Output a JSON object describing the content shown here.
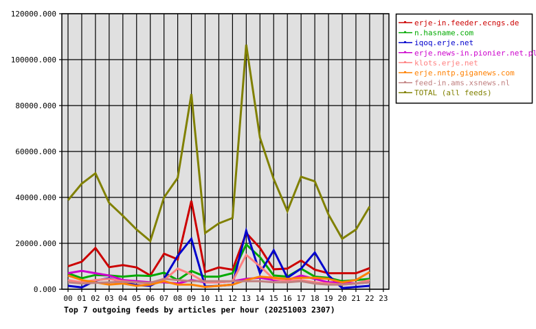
{
  "chart_data": {
    "type": "line",
    "title": "Top 7 outgoing feeds by articles per hour (20251003 2307)",
    "xlabel": "",
    "ylabel": "",
    "ylim": [
      0,
      120000
    ],
    "yticks": [
      "0.000",
      "20000.000",
      "40000.000",
      "60000.000",
      "80000.000",
      "100000.000",
      "120000.000"
    ],
    "ytick_values": [
      0,
      20000,
      40000,
      60000,
      80000,
      100000,
      120000
    ],
    "categories": [
      "00",
      "01",
      "02",
      "03",
      "04",
      "05",
      "06",
      "07",
      "08",
      "09",
      "10",
      "11",
      "12",
      "13",
      "14",
      "15",
      "16",
      "17",
      "18",
      "19",
      "20",
      "21",
      "22",
      "23"
    ],
    "grid": true,
    "legend_position": "right",
    "plot_background": "#e0e0e0",
    "series": [
      {
        "name": "erje-in.feeder.ecngs.de",
        "color": "#cc0000",
        "values": [
          10000,
          12000,
          18000,
          9600,
          10500,
          9500,
          6000,
          15500,
          13000,
          38500,
          7500,
          9500,
          8500,
          24500,
          18000,
          8700,
          9000,
          12500,
          8500,
          7000,
          7000,
          7000,
          9200
        ]
      },
      {
        "name": "n.hasname.com",
        "color": "#00aa00",
        "values": [
          7000,
          4800,
          6200,
          6000,
          5500,
          6000,
          5800,
          7200,
          4000,
          8000,
          5500,
          5500,
          7000,
          19500,
          14000,
          6000,
          5500,
          9000,
          5500,
          5000,
          3500,
          4000,
          4500
        ]
      },
      {
        "name": "iqoq.erje.net",
        "color": "#0000cc",
        "values": [
          1500,
          800,
          3800,
          4800,
          3000,
          1800,
          1500,
          4500,
          14500,
          22000,
          1200,
          1500,
          2000,
          25500,
          7000,
          17000,
          5000,
          9000,
          16000,
          6000,
          500,
          1000,
          1500
        ]
      },
      {
        "name": "erje.news-in.pionier.net.pl",
        "color": "#cc00cc",
        "values": [
          7000,
          8000,
          7000,
          6000,
          4000,
          3500,
          3000,
          3000,
          2500,
          4000,
          3000,
          3000,
          3500,
          4500,
          5000,
          4000,
          4000,
          6000,
          4500,
          3000,
          3000,
          2500,
          3000
        ]
      },
      {
        "name": "klots.erje.net",
        "color": "#ff8080",
        "values": [
          4000,
          3000,
          4000,
          4500,
          3500,
          3000,
          2500,
          4000,
          9000,
          6500,
          3000,
          3000,
          3500,
          15000,
          10000,
          4500,
          3500,
          4000,
          3000,
          2500,
          2000,
          2500,
          4000
        ]
      },
      {
        "name": "erje.nntp.giganews.com",
        "color": "#ff8000",
        "values": [
          6000,
          4000,
          3000,
          2000,
          2500,
          1500,
          2000,
          3500,
          2000,
          2000,
          1000,
          1500,
          2000,
          4000,
          5500,
          5000,
          4500,
          5000,
          5000,
          4500,
          3000,
          4000,
          7500
        ]
      },
      {
        "name": "feed-in.ams.xsnews.nl",
        "color": "#c08080",
        "values": [
          3000,
          2500,
          2800,
          3000,
          3200,
          3000,
          2800,
          4500,
          4000,
          3500,
          3500,
          3500,
          3500,
          3500,
          3500,
          3000,
          3000,
          3500,
          2500,
          2000,
          2000,
          2500,
          3000
        ]
      },
      {
        "name": "TOTAL (all feeds)",
        "color": "#808000",
        "values": [
          38800,
          46000,
          50500,
          37600,
          32000,
          26000,
          21000,
          40000,
          48500,
          85000,
          24500,
          28700,
          31000,
          106500,
          66000,
          48000,
          34000,
          49000,
          47000,
          32500,
          22000,
          26000,
          36000
        ]
      }
    ]
  }
}
